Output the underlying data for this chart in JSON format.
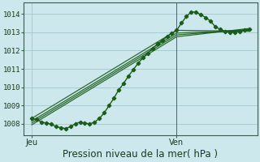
{
  "title": "Pression niveau de la mer( hPa )",
  "bg_color": "#cde8ec",
  "grid_color": "#9bbfc8",
  "line_color": "#1a5c1a",
  "vline_color": "#556655",
  "ylim": [
    1007.4,
    1014.6
  ],
  "xlim": [
    0.0,
    1.45
  ],
  "xtick_labels": [
    "Jeu",
    "Ven"
  ],
  "xtick_pos": [
    0.05,
    0.95
  ],
  "vline_x": 0.95,
  "title_fontsize": 8.5,
  "wavy_series": {
    "x": [
      0.05,
      0.08,
      0.11,
      0.14,
      0.17,
      0.2,
      0.23,
      0.26,
      0.29,
      0.32,
      0.35,
      0.38,
      0.41,
      0.44,
      0.47,
      0.5,
      0.53,
      0.56,
      0.59,
      0.62,
      0.65,
      0.68,
      0.71,
      0.74,
      0.77,
      0.8,
      0.83,
      0.86,
      0.89,
      0.92,
      0.95,
      0.98,
      1.01,
      1.04,
      1.07,
      1.1,
      1.13,
      1.16,
      1.19,
      1.22,
      1.25,
      1.28,
      1.31,
      1.34,
      1.37,
      1.4
    ],
    "y": [
      1008.3,
      1008.25,
      1008.1,
      1008.05,
      1008.0,
      1007.85,
      1007.8,
      1007.75,
      1007.85,
      1008.0,
      1008.1,
      1008.05,
      1008.0,
      1008.1,
      1008.3,
      1008.6,
      1009.0,
      1009.4,
      1009.85,
      1010.2,
      1010.6,
      1010.95,
      1011.3,
      1011.6,
      1011.85,
      1012.1,
      1012.35,
      1012.55,
      1012.75,
      1012.95,
      1013.1,
      1013.5,
      1013.85,
      1014.1,
      1014.1,
      1013.95,
      1013.8,
      1013.6,
      1013.3,
      1013.15,
      1013.05,
      1013.0,
      1013.0,
      1013.05,
      1013.1,
      1013.15
    ],
    "marker": "D",
    "markersize": 2.3,
    "lw": 1.0
  },
  "straight_lines": [
    {
      "x": [
        0.05,
        0.95,
        1.4
      ],
      "y": [
        1008.3,
        1013.1,
        1013.05
      ]
    },
    {
      "x": [
        0.05,
        0.95,
        1.4
      ],
      "y": [
        1008.15,
        1012.95,
        1013.1
      ]
    },
    {
      "x": [
        0.05,
        0.95,
        1.4
      ],
      "y": [
        1008.05,
        1012.85,
        1013.15
      ]
    },
    {
      "x": [
        0.05,
        0.95,
        1.4
      ],
      "y": [
        1007.95,
        1012.75,
        1013.2
      ]
    }
  ]
}
